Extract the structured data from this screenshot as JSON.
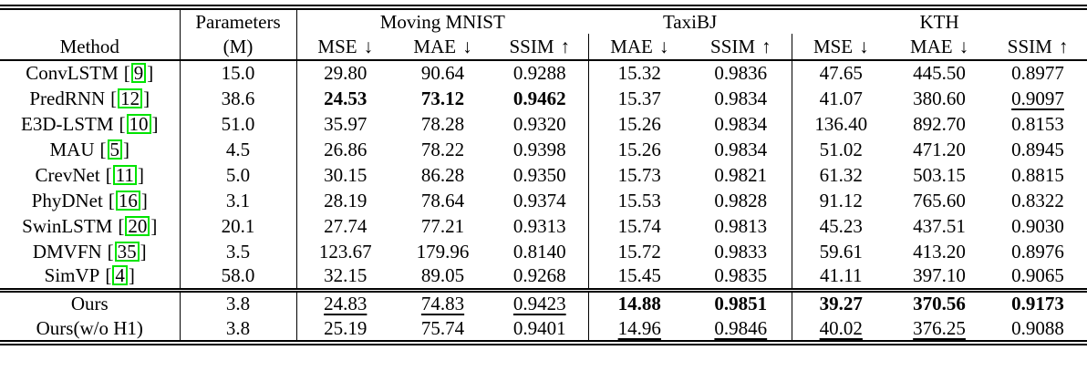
{
  "colors": {
    "citation_box": "#00e400"
  },
  "table": {
    "method_header": "Method",
    "params_header": [
      "Parameters",
      "(M)"
    ],
    "cite_open": "[",
    "cite_close": "]",
    "groups": [
      {
        "name": "Moving MNIST",
        "metrics": [
          {
            "label": "MSE",
            "arrow": "↓"
          },
          {
            "label": "MAE",
            "arrow": "↓"
          },
          {
            "label": "SSIM",
            "arrow": "↑"
          }
        ]
      },
      {
        "name": "TaxiBJ",
        "metrics": [
          {
            "label": "MAE",
            "arrow": "↓"
          },
          {
            "label": "SSIM",
            "arrow": "↑"
          }
        ]
      },
      {
        "name": "KTH",
        "metrics": [
          {
            "label": "MSE",
            "arrow": "↓"
          },
          {
            "label": "MAE",
            "arrow": "↓"
          },
          {
            "label": "SSIM",
            "arrow": "↑"
          }
        ]
      }
    ],
    "rows": [
      {
        "method": "ConvLSTM",
        "cite": "9",
        "params": "15.0",
        "values": [
          "29.80",
          "90.64",
          "0.9288",
          "15.32",
          "0.9836",
          "47.65",
          "445.50",
          "0.8977"
        ],
        "styles": [
          "",
          "",
          "",
          "",
          "",
          "",
          "",
          ""
        ]
      },
      {
        "method": "PredRNN",
        "cite": "12",
        "params": "38.6",
        "values": [
          "24.53",
          "73.12",
          "0.9462",
          "15.37",
          "0.9834",
          "41.07",
          "380.60",
          "0.9097"
        ],
        "styles": [
          "b",
          "b",
          "b",
          "",
          "",
          "",
          "",
          "u"
        ]
      },
      {
        "method": "E3D-LSTM",
        "cite": "10",
        "params": "51.0",
        "values": [
          "35.97",
          "78.28",
          "0.9320",
          "15.26",
          "0.9834",
          "136.40",
          "892.70",
          "0.8153"
        ],
        "styles": [
          "",
          "",
          "",
          "",
          "",
          "",
          "",
          ""
        ]
      },
      {
        "method": "MAU",
        "cite": "5",
        "params": "4.5",
        "values": [
          "26.86",
          "78.22",
          "0.9398",
          "15.26",
          "0.9834",
          "51.02",
          "471.20",
          "0.8945"
        ],
        "styles": [
          "",
          "",
          "",
          "",
          "",
          "",
          "",
          ""
        ]
      },
      {
        "method": "CrevNet",
        "cite": "11",
        "params": "5.0",
        "values": [
          "30.15",
          "86.28",
          "0.9350",
          "15.73",
          "0.9821",
          "61.32",
          "503.15",
          "0.8815"
        ],
        "styles": [
          "",
          "",
          "",
          "",
          "",
          "",
          "",
          ""
        ]
      },
      {
        "method": "PhyDNet",
        "cite": "16",
        "params": "3.1",
        "values": [
          "28.19",
          "78.64",
          "0.9374",
          "15.53",
          "0.9828",
          "91.12",
          "765.60",
          "0.8322"
        ],
        "styles": [
          "",
          "",
          "",
          "",
          "",
          "",
          "",
          ""
        ]
      },
      {
        "method": "SwinLSTM",
        "cite": "20",
        "params": "20.1",
        "values": [
          "27.74",
          "77.21",
          "0.9313",
          "15.74",
          "0.9813",
          "45.23",
          "437.51",
          "0.9030"
        ],
        "styles": [
          "",
          "",
          "",
          "",
          "",
          "",
          "",
          ""
        ]
      },
      {
        "method": "DMVFN",
        "cite": "35",
        "params": "3.5",
        "values": [
          "123.67",
          "179.96",
          "0.8140",
          "15.72",
          "0.9833",
          "59.61",
          "413.20",
          "0.8976"
        ],
        "styles": [
          "",
          "",
          "",
          "",
          "",
          "",
          "",
          ""
        ]
      },
      {
        "method": "SimVP",
        "cite": "4",
        "params": "58.0",
        "values": [
          "32.15",
          "89.05",
          "0.9268",
          "15.45",
          "0.9835",
          "41.11",
          "397.10",
          "0.9065"
        ],
        "styles": [
          "",
          "",
          "",
          "",
          "",
          "",
          "",
          ""
        ]
      }
    ],
    "ours_rows": [
      {
        "method": "Ours",
        "cite": "",
        "params": "3.8",
        "values": [
          "24.83",
          "74.83",
          "0.9423",
          "14.88",
          "0.9851",
          "39.27",
          "370.56",
          "0.9173"
        ],
        "styles": [
          "u",
          "u",
          "u",
          "b",
          "b",
          "b",
          "b",
          "b"
        ]
      },
      {
        "method": "Ours(w/o H1)",
        "cite": "",
        "params": "3.8",
        "values": [
          "25.19",
          "75.74",
          "0.9401",
          "14.96",
          "0.9846",
          "40.02",
          "376.25",
          "0.9088"
        ],
        "styles": [
          "",
          "",
          "",
          "u",
          "u",
          "u",
          "u",
          ""
        ]
      }
    ]
  }
}
